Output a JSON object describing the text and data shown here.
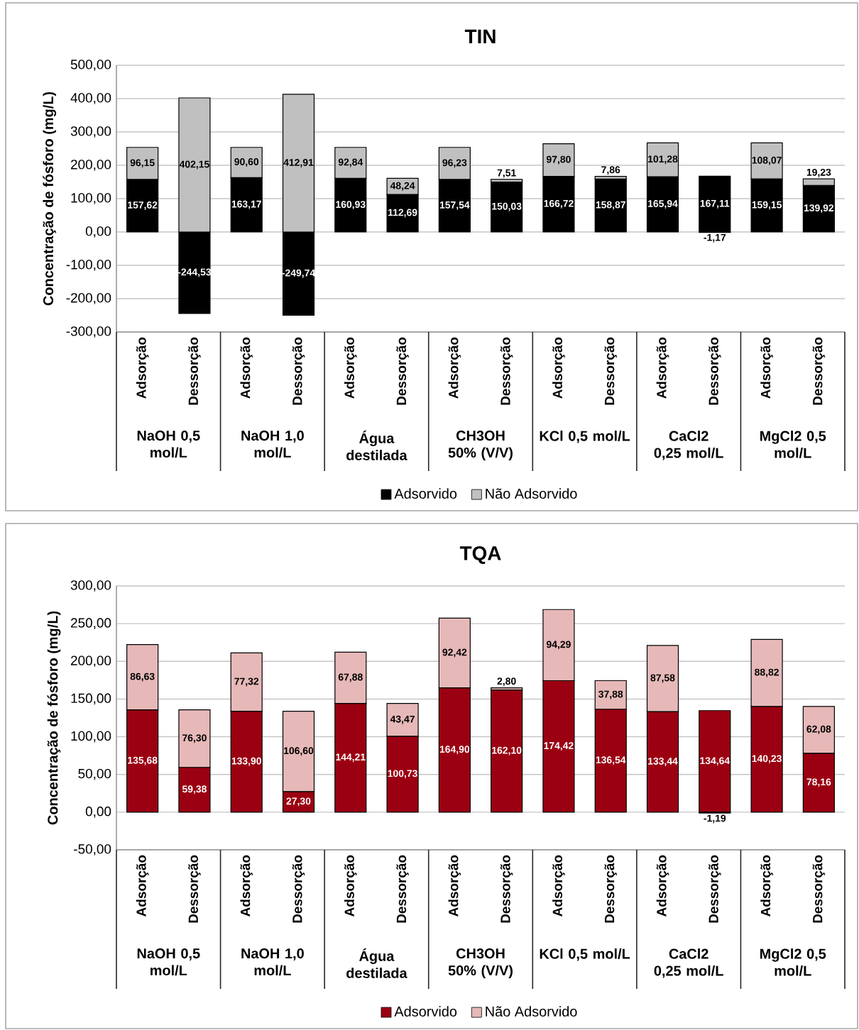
{
  "chart_data": [
    {
      "type": "bar",
      "stacked": true,
      "title": "TIN",
      "ylabel": "Concentração de fósforo (mg/L)",
      "categories": [
        "Adsorção",
        "Dessorção",
        "Adsorção",
        "Dessorção",
        "Adsorção",
        "Dessorção",
        "Adsorção",
        "Dessorção",
        "Adsorção",
        "Dessorção",
        "Adsorção",
        "Dessorção",
        "Adsorção",
        "Dessorção"
      ],
      "annotations": [
        "NaOH 0,5 mol/L",
        "NaOH 1,0 mol/L",
        "Água destilada",
        "CH3OH 50% (V/V)",
        "KCl 0,5 mol/L",
        "CaCl2 0,25 mol/L",
        "MgCl2 0,5 mol/L"
      ],
      "series": [
        {
          "name": "Adsorvido",
          "color": "#000000",
          "values": [
            157.62,
            -244.53,
            163.17,
            -249.74,
            160.93,
            112.69,
            157.54,
            150.03,
            166.72,
            158.87,
            165.94,
            167.11,
            159.15,
            139.92
          ],
          "value_labels": [
            "157,62",
            "-244,53",
            "163,17",
            "-249,74",
            "160,93",
            "112,69",
            "157,54",
            "150,03",
            "166,72",
            "158,87",
            "165,94",
            "167,11",
            "159,15",
            "139,92"
          ]
        },
        {
          "name": "Não Adsorvido",
          "color": "#c0c0c0",
          "values": [
            96.15,
            402.15,
            90.6,
            412.91,
            92.84,
            48.24,
            96.23,
            7.51,
            97.8,
            7.86,
            101.28,
            -1.17,
            108.07,
            19.23
          ],
          "value_labels": [
            "96,15",
            "402,15",
            "90,60",
            "412,91",
            "92,84",
            "48,24",
            "96,23",
            "7,51",
            "97,80",
            "7,86",
            "101,28",
            "-1,17",
            "108,07",
            "19,23"
          ]
        }
      ],
      "ylim": [
        -300,
        500
      ],
      "yticks": [
        {
          "value": -300,
          "label": "-300,00"
        },
        {
          "value": -200,
          "label": "-200,00"
        },
        {
          "value": -100,
          "label": "-100,00"
        },
        {
          "value": 0,
          "label": "0,00"
        },
        {
          "value": 100,
          "label": "100,00"
        },
        {
          "value": 200,
          "label": "200,00"
        },
        {
          "value": 300,
          "label": "300,00"
        },
        {
          "value": 400,
          "label": "400,00"
        },
        {
          "value": 500,
          "label": "500,00"
        }
      ],
      "grid": "y",
      "legend": "bottom"
    },
    {
      "type": "bar",
      "stacked": true,
      "title": "TQA",
      "ylabel": "Concentração de fósforo (mg/L)",
      "categories": [
        "Adsorção",
        "Dessorção",
        "Adsorção",
        "Dessorção",
        "Adsorção",
        "Dessorção",
        "Adsorção",
        "Dessorção",
        "Adsorção",
        "Dessorção",
        "Adsorção",
        "Dessorção",
        "Adsorção",
        "Dessorção"
      ],
      "annotations": [
        "NaOH 0,5 mol/L",
        "NaOH 1,0 mol/L",
        "Água destilada",
        "CH3OH 50% (V/V)",
        "KCl 0,5 mol/L",
        "CaCl2 0,25 mol/L",
        "MgCl2 0,5 mol/L"
      ],
      "series": [
        {
          "name": "Adsorvido",
          "color": "#9b0012",
          "values": [
            135.68,
            59.38,
            133.9,
            27.3,
            144.21,
            100.73,
            164.9,
            162.1,
            174.42,
            136.54,
            133.44,
            134.64,
            140.23,
            78.16
          ],
          "value_labels": [
            "135,68",
            "59,38",
            "133,90",
            "27,30",
            "144,21",
            "100,73",
            "164,90",
            "162,10",
            "174,42",
            "136,54",
            "133,44",
            "134,64",
            "140,23",
            "78,16"
          ]
        },
        {
          "name": "Não Adsorvido",
          "color": "#e6b9b8",
          "values": [
            86.63,
            76.3,
            77.32,
            106.6,
            67.88,
            43.47,
            92.42,
            2.8,
            94.29,
            37.88,
            87.58,
            -1.19,
            88.82,
            62.08
          ],
          "value_labels": [
            "86,63",
            "76,30",
            "77,32",
            "106,60",
            "67,88",
            "43,47",
            "92,42",
            "2,80",
            "94,29",
            "37,88",
            "87,58",
            "-1,19",
            "88,82",
            "62,08"
          ]
        }
      ],
      "ylim": [
        -50,
        300
      ],
      "yticks": [
        {
          "value": -50,
          "label": "-50,00"
        },
        {
          "value": 0,
          "label": "0,00"
        },
        {
          "value": 50,
          "label": "50,00"
        },
        {
          "value": 100,
          "label": "100,00"
        },
        {
          "value": 150,
          "label": "150,00"
        },
        {
          "value": 200,
          "label": "200,00"
        },
        {
          "value": 250,
          "label": "250,00"
        },
        {
          "value": 300,
          "label": "300,00"
        }
      ],
      "grid": "y",
      "legend": "bottom"
    }
  ]
}
